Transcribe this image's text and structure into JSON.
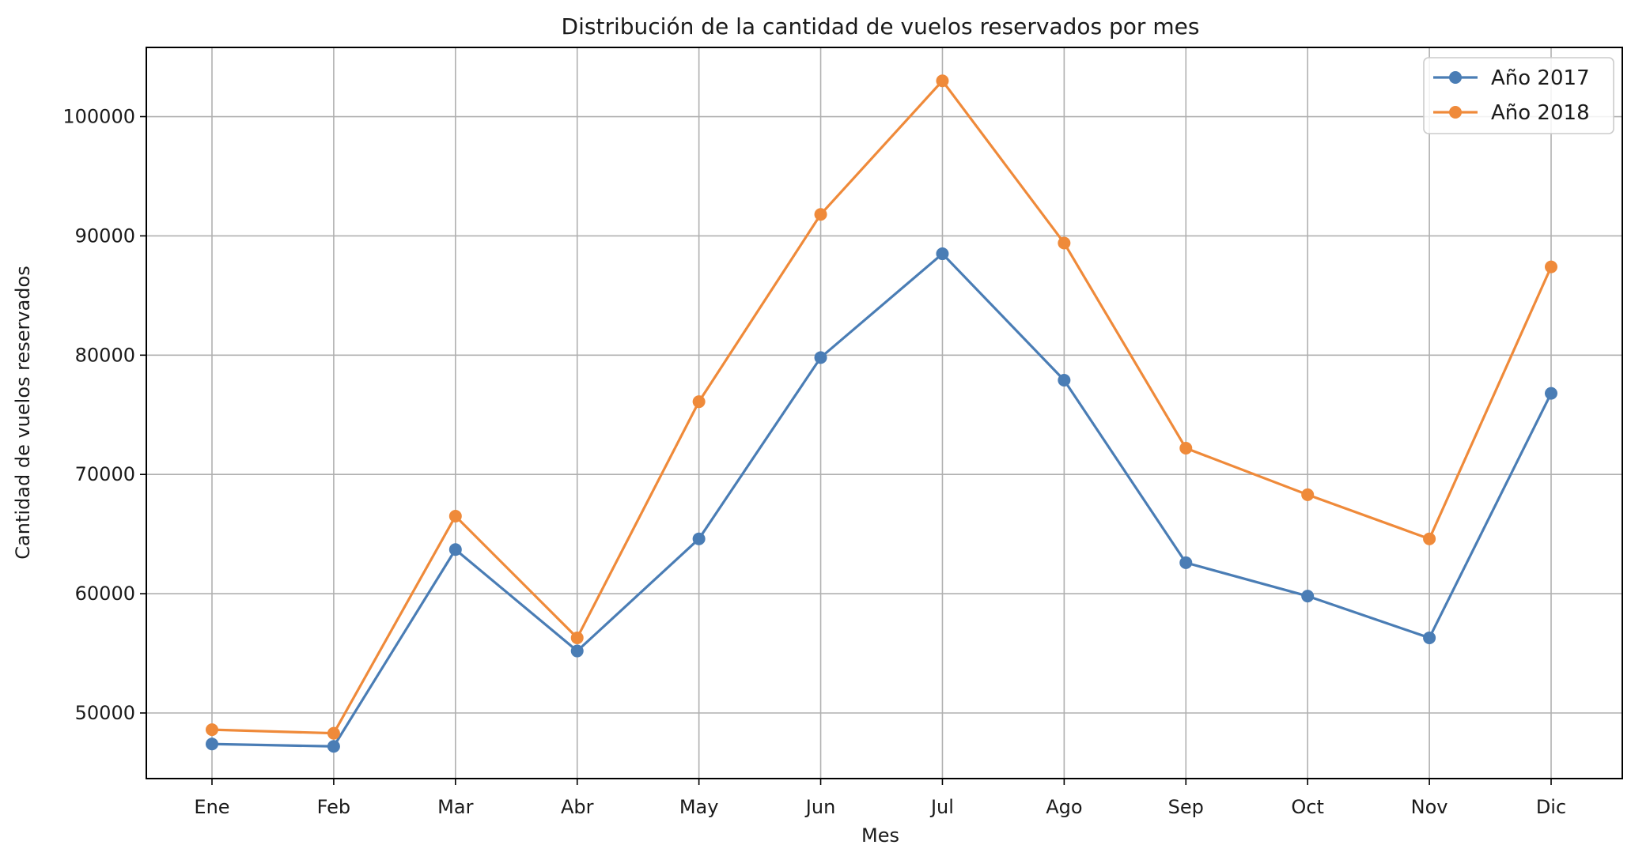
{
  "chart_data": {
    "type": "line",
    "title": "Distribución de la cantidad de vuelos reservados por mes",
    "xlabel": "Mes",
    "ylabel": "Cantidad de vuelos reservados",
    "categories": [
      "Ene",
      "Feb",
      "Mar",
      "Abr",
      "May",
      "Jun",
      "Jul",
      "Ago",
      "Sep",
      "Oct",
      "Nov",
      "Dic"
    ],
    "ylim": [
      44500,
      105800
    ],
    "yticks": [
      50000,
      60000,
      70000,
      80000,
      90000,
      100000
    ],
    "ytick_labels": [
      "50000",
      "60000",
      "70000",
      "80000",
      "90000",
      "100000"
    ],
    "grid": true,
    "legend_position": "upper right",
    "series": [
      {
        "name": "Año 2017",
        "color": "#4a7db5",
        "marker": "circle",
        "values": [
          47400,
          47200,
          63700,
          55200,
          64600,
          79800,
          88500,
          77900,
          62600,
          59800,
          56300,
          76800
        ]
      },
      {
        "name": "Año 2018",
        "color": "#ef8a3a",
        "marker": "circle",
        "values": [
          48600,
          48300,
          66500,
          56300,
          76100,
          91800,
          103000,
          89400,
          72200,
          68300,
          64600,
          87400
        ]
      }
    ]
  }
}
